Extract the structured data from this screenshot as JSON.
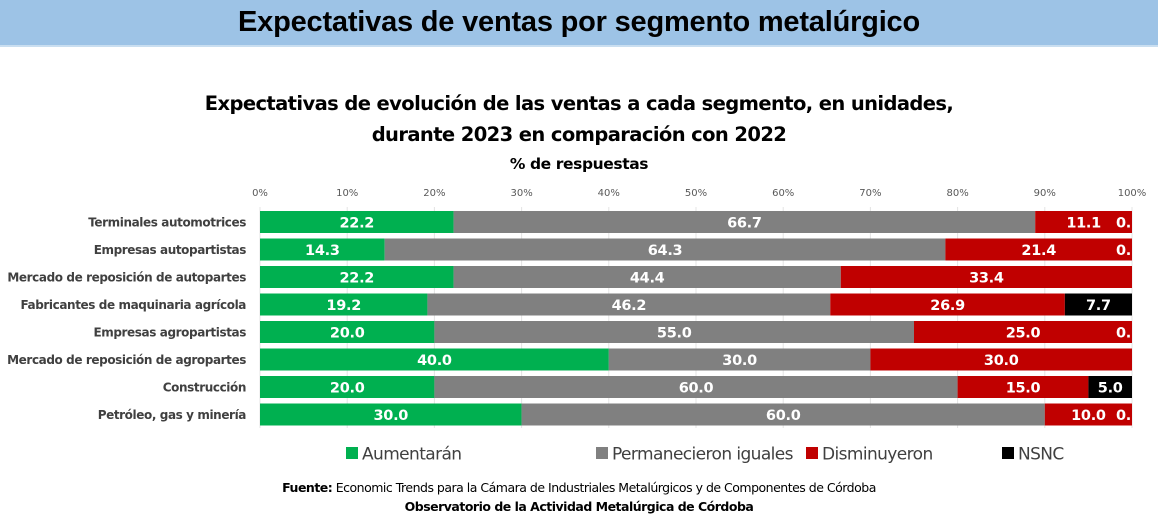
{
  "banner": {
    "title": "Expectativas de ventas por segmento metalúrgico"
  },
  "chart_data": {
    "type": "bar",
    "orientation": "horizontal",
    "stacked": true,
    "title": "Expectativas de evolución de las ventas a cada segmento, en unidades,",
    "title_line2": "durante 2023 en comparación con 2022",
    "subtitle": "% de respuestas",
    "xlabel": "",
    "ylabel": "",
    "xlim": [
      0,
      100
    ],
    "x_ticks": [
      "0%",
      "10%",
      "20%",
      "30%",
      "40%",
      "50%",
      "60%",
      "70%",
      "80%",
      "90%",
      "100%"
    ],
    "grid": true,
    "legend_position": "bottom",
    "categories": [
      "Terminales automotrices",
      "Empresas autopartistas",
      "Mercado de reposición de autopartes",
      "Fabricantes de maquinaria agrícola",
      "Empresas agropartistas",
      "Mercado de reposición de agropartes",
      "Construcción",
      "Petróleo, gas y minería"
    ],
    "series": [
      {
        "name": "Aumentarán",
        "color": "#00b050",
        "values": [
          22.2,
          14.3,
          22.2,
          19.2,
          20.0,
          40.0,
          20.0,
          30.0
        ]
      },
      {
        "name": "Permanecieron iguales",
        "color": "#808080",
        "values": [
          66.7,
          64.3,
          44.4,
          46.2,
          55.0,
          30.0,
          60.0,
          60.0
        ]
      },
      {
        "name": "Disminuyeron",
        "color": "#c00000",
        "values": [
          11.1,
          21.4,
          33.4,
          26.9,
          25.0,
          30.0,
          15.0,
          10.0
        ]
      },
      {
        "name": "NSNC",
        "color": "#000000",
        "values": [
          0.0,
          0.0,
          0.0,
          7.7,
          0.0,
          0.0,
          5.0,
          0.0
        ]
      }
    ],
    "data_labels": [
      [
        "22.2",
        "66.7",
        "11.1",
        "0."
      ],
      [
        "14.3",
        "64.3",
        "21.4",
        "0."
      ],
      [
        "22.2",
        "44.4",
        "33.4",
        ""
      ],
      [
        "19.2",
        "46.2",
        "26.9",
        "7.7"
      ],
      [
        "20.0",
        "55.0",
        "25.0",
        "0."
      ],
      [
        "40.0",
        "30.0",
        "30.0",
        ""
      ],
      [
        "20.0",
        "60.0",
        "15.0",
        "5.0"
      ],
      [
        "30.0",
        "60.0",
        "10.0",
        "0."
      ]
    ]
  },
  "footer": {
    "source_label": "Fuente:",
    "source_text": " Economic Trends para la Cámara de Industriales Metalúrgicos y de Componentes de Córdoba",
    "org": "Observatorio de la Actividad Metalúrgica de Córdoba"
  }
}
